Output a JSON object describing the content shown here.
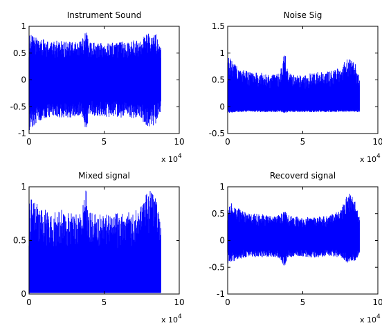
{
  "figure": {
    "background": "#ffffff",
    "axis_color": "#000000",
    "signal_color": "#0000ff"
  },
  "chart_data": [
    {
      "type": "line",
      "title": "Instrument Sound",
      "xlim": [
        0,
        100000
      ],
      "ylim": [
        -1,
        1
      ],
      "xtick_labels": [
        "0",
        "5",
        "10"
      ],
      "x_multiplier_label": "x 10",
      "x_multiplier_exponent": "4",
      "ytick_values": [
        -1,
        -0.5,
        0,
        0.5,
        1
      ],
      "ytick_labels": [
        "-1",
        "-0.5",
        "0",
        "0.5",
        "1"
      ],
      "series": [
        {
          "color": "#0000ff",
          "x_end": 88000,
          "baseline": 0,
          "envelope_x": [
            0,
            5000,
            10000,
            15000,
            20000,
            25000,
            30000,
            35000,
            38000,
            40000,
            45000,
            50000,
            55000,
            60000,
            65000,
            70000,
            75000,
            80000,
            85000,
            88000
          ],
          "envelope_upper": [
            0.85,
            0.8,
            0.75,
            0.7,
            0.75,
            0.72,
            0.7,
            0.73,
            0.95,
            0.7,
            0.7,
            0.68,
            0.7,
            0.72,
            0.72,
            0.75,
            0.78,
            0.92,
            0.85,
            0.6
          ],
          "envelope_lower": [
            -0.95,
            -0.8,
            -0.72,
            -0.7,
            -0.72,
            -0.7,
            -0.7,
            -0.72,
            -0.95,
            -0.7,
            -0.68,
            -0.68,
            -0.7,
            -0.7,
            -0.72,
            -0.72,
            -0.75,
            -0.92,
            -0.8,
            -0.55
          ]
        }
      ]
    },
    {
      "type": "line",
      "title": "Noise Sig",
      "xlim": [
        0,
        100000
      ],
      "ylim": [
        -0.5,
        1.5
      ],
      "xtick_labels": [
        "0",
        "5",
        "10"
      ],
      "x_multiplier_label": "x 10",
      "x_multiplier_exponent": "4",
      "ytick_values": [
        -0.5,
        0,
        0.5,
        1,
        1.5
      ],
      "ytick_labels": [
        "-0.5",
        "0",
        "0.5",
        "1",
        "1.5"
      ],
      "series": [
        {
          "color": "#0000ff",
          "x_end": 88000,
          "baseline": 0,
          "envelope_x": [
            0,
            5000,
            10000,
            15000,
            20000,
            25000,
            30000,
            35000,
            38000,
            40000,
            45000,
            50000,
            55000,
            60000,
            65000,
            70000,
            75000,
            80000,
            85000,
            88000
          ],
          "envelope_upper": [
            0.95,
            0.8,
            0.7,
            0.65,
            0.65,
            0.62,
            0.6,
            0.65,
            1.05,
            0.65,
            0.6,
            0.58,
            0.62,
            0.65,
            0.65,
            0.68,
            0.75,
            0.92,
            0.8,
            0.6
          ],
          "envelope_lower": [
            -0.12,
            -0.1,
            -0.1,
            -0.09,
            -0.1,
            -0.1,
            -0.1,
            -0.1,
            -0.12,
            -0.1,
            -0.1,
            -0.1,
            -0.1,
            -0.1,
            -0.1,
            -0.1,
            -0.1,
            -0.1,
            -0.1,
            -0.1
          ]
        }
      ]
    },
    {
      "type": "line",
      "title": "Mixed signal",
      "xlim": [
        0,
        100000
      ],
      "ylim": [
        0,
        1
      ],
      "xtick_labels": [
        "0",
        "5",
        "10"
      ],
      "x_multiplier_label": "x 10",
      "x_multiplier_exponent": "4",
      "ytick_values": [
        0,
        0.5,
        1
      ],
      "ytick_labels": [
        "0",
        "0.5",
        "1"
      ],
      "series": [
        {
          "color": "#0000ff",
          "x_end": 88000,
          "baseline": 0,
          "envelope_x": [
            0,
            5000,
            10000,
            15000,
            20000,
            25000,
            30000,
            35000,
            38000,
            40000,
            45000,
            50000,
            55000,
            60000,
            65000,
            70000,
            75000,
            80000,
            85000,
            88000
          ],
          "envelope_upper": [
            0.9,
            0.85,
            0.8,
            0.75,
            0.8,
            0.76,
            0.75,
            0.78,
            0.98,
            0.76,
            0.75,
            0.73,
            0.76,
            0.78,
            0.76,
            0.78,
            0.85,
            0.98,
            0.88,
            0.65
          ],
          "envelope_lower": [
            0.02,
            0.02,
            0.02,
            0.02,
            0.02,
            0.02,
            0.02,
            0.02,
            0.02,
            0.02,
            0.02,
            0.02,
            0.02,
            0.02,
            0.02,
            0.02,
            0.02,
            0.02,
            0.02,
            0.02
          ]
        }
      ]
    },
    {
      "type": "line",
      "title": "Recoverd signal",
      "xlim": [
        0,
        100000
      ],
      "ylim": [
        -1,
        1
      ],
      "xtick_labels": [
        "0",
        "5",
        "10"
      ],
      "x_multiplier_label": "x 10",
      "x_multiplier_exponent": "4",
      "ytick_values": [
        -1,
        -0.5,
        0,
        0.5,
        1
      ],
      "ytick_labels": [
        "-1",
        "-0.5",
        "0",
        "0.5",
        "1"
      ],
      "series": [
        {
          "color": "#0000ff",
          "x_end": 88000,
          "baseline": 0,
          "envelope_x": [
            0,
            5000,
            10000,
            15000,
            20000,
            25000,
            30000,
            35000,
            38000,
            40000,
            45000,
            50000,
            55000,
            60000,
            65000,
            70000,
            75000,
            80000,
            85000,
            88000
          ],
          "envelope_upper": [
            0.75,
            0.65,
            0.55,
            0.5,
            0.5,
            0.48,
            0.45,
            0.5,
            0.55,
            0.48,
            0.45,
            0.42,
            0.45,
            0.45,
            0.45,
            0.5,
            0.55,
            0.92,
            0.75,
            0.4
          ],
          "envelope_lower": [
            -0.45,
            -0.38,
            -0.33,
            -0.3,
            -0.32,
            -0.32,
            -0.3,
            -0.35,
            -0.5,
            -0.32,
            -0.3,
            -0.3,
            -0.32,
            -0.32,
            -0.3,
            -0.3,
            -0.32,
            -0.42,
            -0.38,
            -0.28
          ]
        }
      ]
    }
  ]
}
